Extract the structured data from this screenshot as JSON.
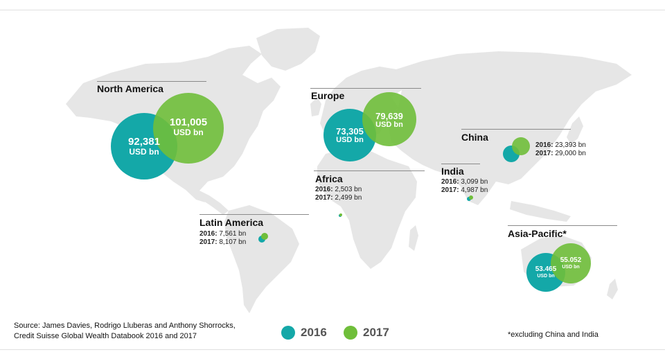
{
  "colors": {
    "y2016": "#14a8a8",
    "y2017": "#6fbe3a",
    "land": "#e6e6e6"
  },
  "regions": {
    "north_america": {
      "title": "North America",
      "v2016": "92,381",
      "v2017": "101,005",
      "unit": "USD bn"
    },
    "europe": {
      "title": "Europe",
      "v2016": "73,305",
      "v2017": "79,639",
      "unit": "USD bn"
    },
    "china": {
      "title": "China",
      "label2016": "2016:",
      "value2016": "23,393 bn",
      "label2017": "2017:",
      "value2017": "29,000 bn"
    },
    "africa": {
      "title": "Africa",
      "label2016": "2016:",
      "value2016": "2,503 bn",
      "label2017": "2017:",
      "value2017": "2,499 bn"
    },
    "india": {
      "title": "India",
      "label2016": "2016:",
      "value2016": "3,099 bn",
      "label2017": "2017:",
      "value2017": "4,987 bn"
    },
    "latin_america": {
      "title": "Latin America",
      "label2016": "2016:",
      "value2016": "7,561 bn",
      "label2017": "2017:",
      "value2017": "8,107 bn"
    },
    "asia_pacific": {
      "title": "Asia-Pacific*",
      "v2016": "53.465",
      "v2017": "55.052",
      "unit": "USD bn"
    }
  },
  "legend": {
    "y2016": "2016",
    "y2017": "2017"
  },
  "source": {
    "line1": "Source: James Davies, Rodrigo Lluberas and Anthony Shorrocks,",
    "line2": "Credit Suisse Global Wealth Databook 2016 and 2017"
  },
  "note": "*excluding China and India"
}
